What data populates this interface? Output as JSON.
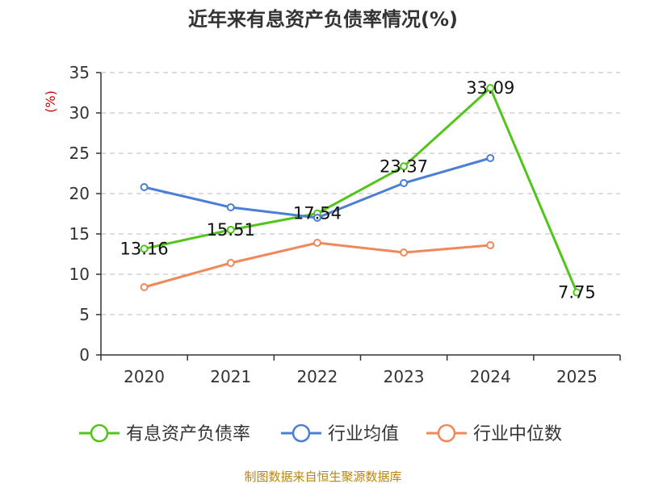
{
  "chart_data": {
    "type": "line",
    "title": "近年来有息资产负债率情况(%)",
    "ylabel": "(%)",
    "xlabel": "",
    "ylim": [
      0,
      35
    ],
    "yticks": [
      0,
      5,
      10,
      15,
      20,
      25,
      30,
      35
    ],
    "categories": [
      "2020",
      "2021",
      "2022",
      "2023",
      "2024",
      "2025"
    ],
    "grid": true,
    "legend_position": "bottom",
    "series": [
      {
        "name": "有息资产负债率",
        "color": "#52c41a",
        "values": [
          13.16,
          15.51,
          17.54,
          23.37,
          33.09,
          7.75
        ],
        "labels": [
          "13.16",
          "15.51",
          "17.54",
          "23.37",
          "33.09",
          "7.75"
        ]
      },
      {
        "name": "行业均值",
        "color": "#4a7fd4",
        "values": [
          20.8,
          18.3,
          17.0,
          21.3,
          24.4,
          null
        ]
      },
      {
        "name": "行业中位数",
        "color": "#f0885a",
        "values": [
          8.4,
          11.4,
          13.9,
          12.7,
          13.6,
          null
        ]
      }
    ]
  },
  "source": "制图数据来自恒生聚源数据库"
}
